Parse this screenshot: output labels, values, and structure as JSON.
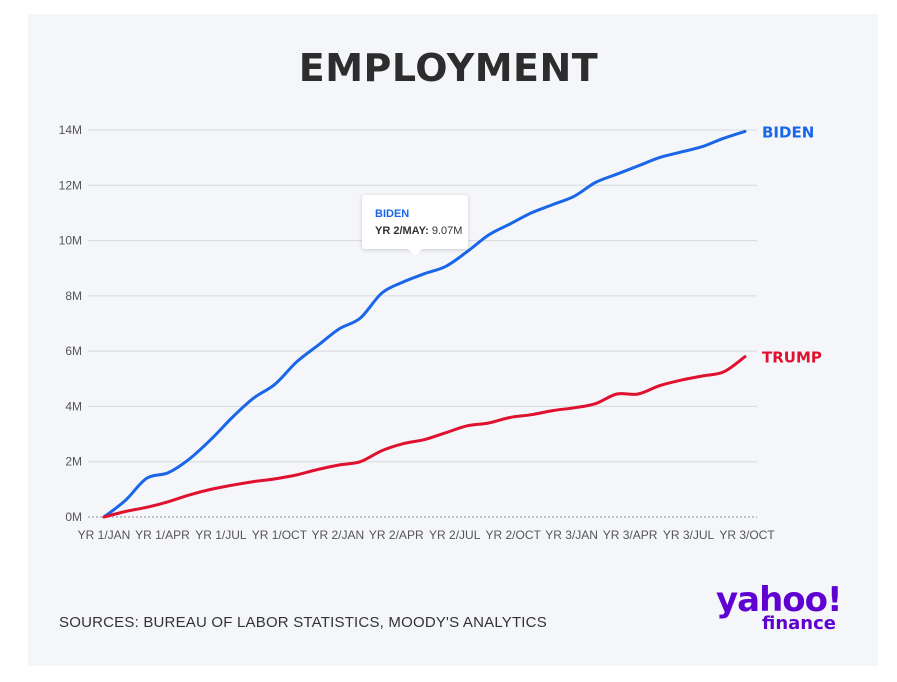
{
  "title": "EMPLOYMENT",
  "tooltip": {
    "series": "BIDEN",
    "label": "YR 2/MAY:",
    "value": "9.07M"
  },
  "source": "SOURCES: BUREAU OF LABOR STATISTICS, MOODY'S ANALYTICS",
  "logo": {
    "line1": "yahoo!",
    "line2": "finance",
    "color": "#5f01d1"
  },
  "colors": {
    "biden": "#1a66e8",
    "trump": "#e0102f",
    "grid": "#d6d9de",
    "background": "#f4f6f9"
  },
  "chart_data": {
    "type": "line",
    "title": "EMPLOYMENT",
    "xlabel": "",
    "ylabel": "",
    "ylim": [
      0,
      14
    ],
    "y_ticks": [
      "0M",
      "2M",
      "4M",
      "6M",
      "8M",
      "10M",
      "12M",
      "14M"
    ],
    "x_ticks": [
      "YR 1/JAN",
      "YR 1/APR",
      "YR 1/JUL",
      "YR 1/OCT",
      "YR 2/JAN",
      "YR 2/APR",
      "YR 2/JUL",
      "YR 2/OCT",
      "YR 3/JAN",
      "YR 3/APR",
      "YR 3/JUL",
      "YR 3/OCT"
    ],
    "grid": true,
    "series": [
      {
        "name": "BIDEN",
        "color": "#1a66e8",
        "values": [
          0.0,
          0.6,
          1.4,
          1.6,
          2.1,
          2.8,
          3.6,
          4.3,
          4.8,
          5.6,
          6.2,
          6.8,
          7.2,
          8.1,
          8.5,
          8.8,
          9.07,
          9.6,
          10.2,
          10.6,
          11.0,
          11.3,
          11.6,
          12.1,
          12.4,
          12.7,
          13.0,
          13.2,
          13.4,
          13.7,
          13.95
        ]
      },
      {
        "name": "TRUMP",
        "color": "#e0102f",
        "values": [
          0.0,
          0.2,
          0.35,
          0.55,
          0.8,
          1.0,
          1.15,
          1.28,
          1.38,
          1.52,
          1.72,
          1.88,
          2.0,
          2.4,
          2.65,
          2.8,
          3.05,
          3.3,
          3.4,
          3.6,
          3.7,
          3.85,
          3.95,
          4.1,
          4.45,
          4.45,
          4.75,
          4.95,
          5.1,
          5.25,
          5.8
        ]
      }
    ]
  }
}
